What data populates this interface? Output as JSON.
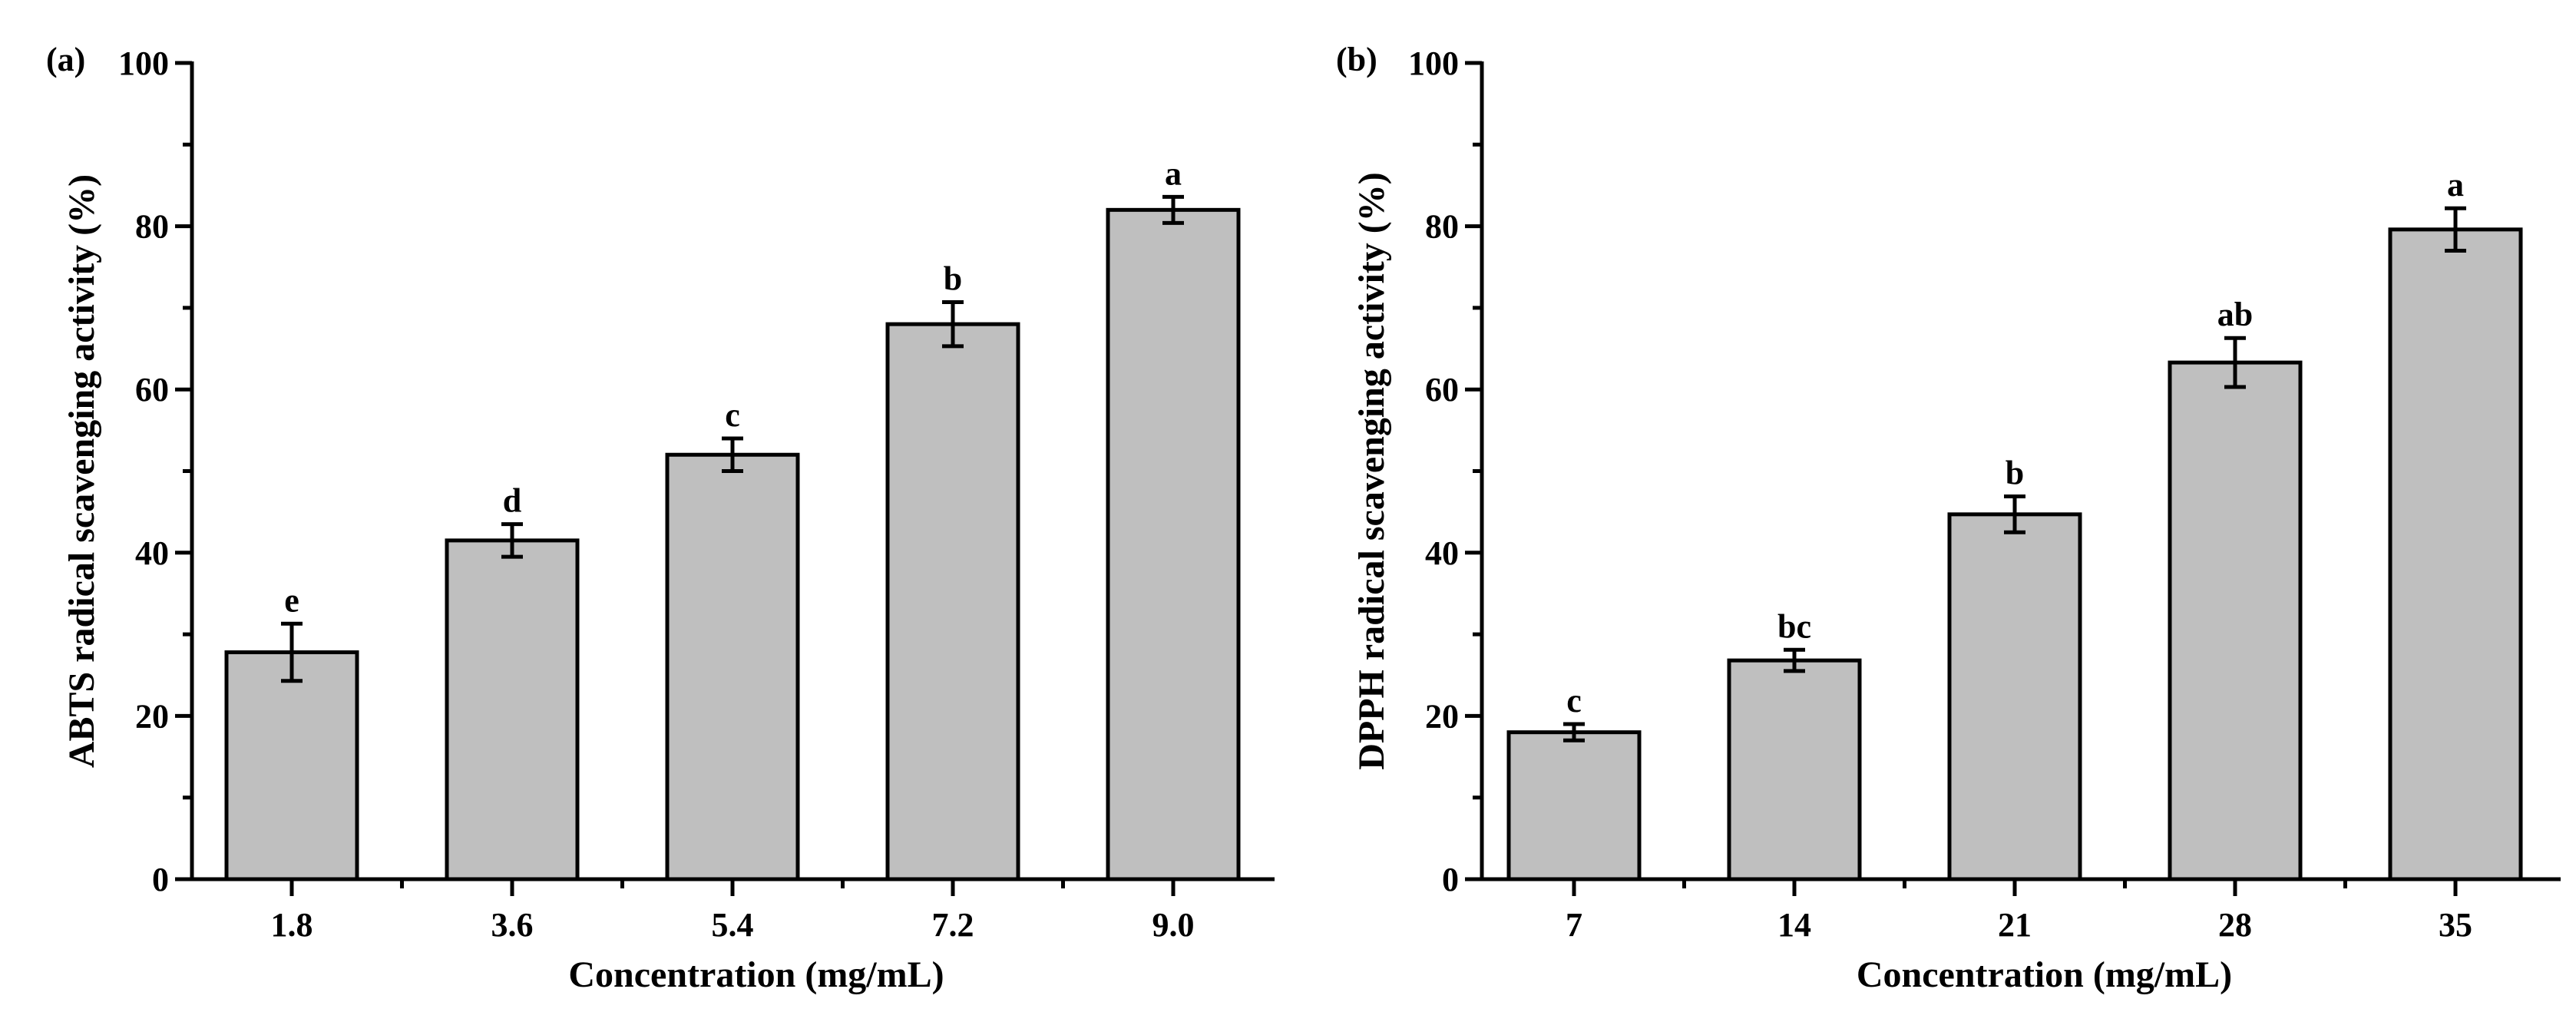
{
  "chart_data": [
    {
      "type": "bar",
      "panel_label": "(a)",
      "title": "",
      "categories": [
        "1.8",
        "3.6",
        "5.4",
        "7.2",
        "9.0"
      ],
      "values": [
        27.8,
        41.5,
        52.0,
        68.0,
        82.0
      ],
      "errors": [
        3.5,
        2.0,
        2.0,
        2.7,
        1.6
      ],
      "significance": [
        "e",
        "d",
        "c",
        "b",
        "a"
      ],
      "xlabel": "Concentration (mg/mL)",
      "ylabel": "ABTS radical scavenging activity (%)",
      "ylim": [
        0,
        100
      ],
      "yticks": [
        "0",
        "20",
        "40",
        "60",
        "80",
        "100"
      ],
      "bar_color": "#bfbfbf",
      "edge_color": "#000000"
    },
    {
      "type": "bar",
      "panel_label": "(b)",
      "title": "",
      "categories": [
        "7",
        "14",
        "21",
        "28",
        "35"
      ],
      "values": [
        18.0,
        26.8,
        44.7,
        63.3,
        79.6
      ],
      "errors": [
        1.0,
        1.3,
        2.2,
        3.0,
        2.6
      ],
      "significance": [
        "c",
        "bc",
        "b",
        "ab",
        "a"
      ],
      "xlabel": "Concentration (mg/mL)",
      "ylabel": "DPPH radical scavenging activity (%)",
      "ylim": [
        0,
        100
      ],
      "yticks": [
        "0",
        "20",
        "40",
        "60",
        "80",
        "100"
      ],
      "bar_color": "#bfbfbf",
      "edge_color": "#000000"
    }
  ]
}
